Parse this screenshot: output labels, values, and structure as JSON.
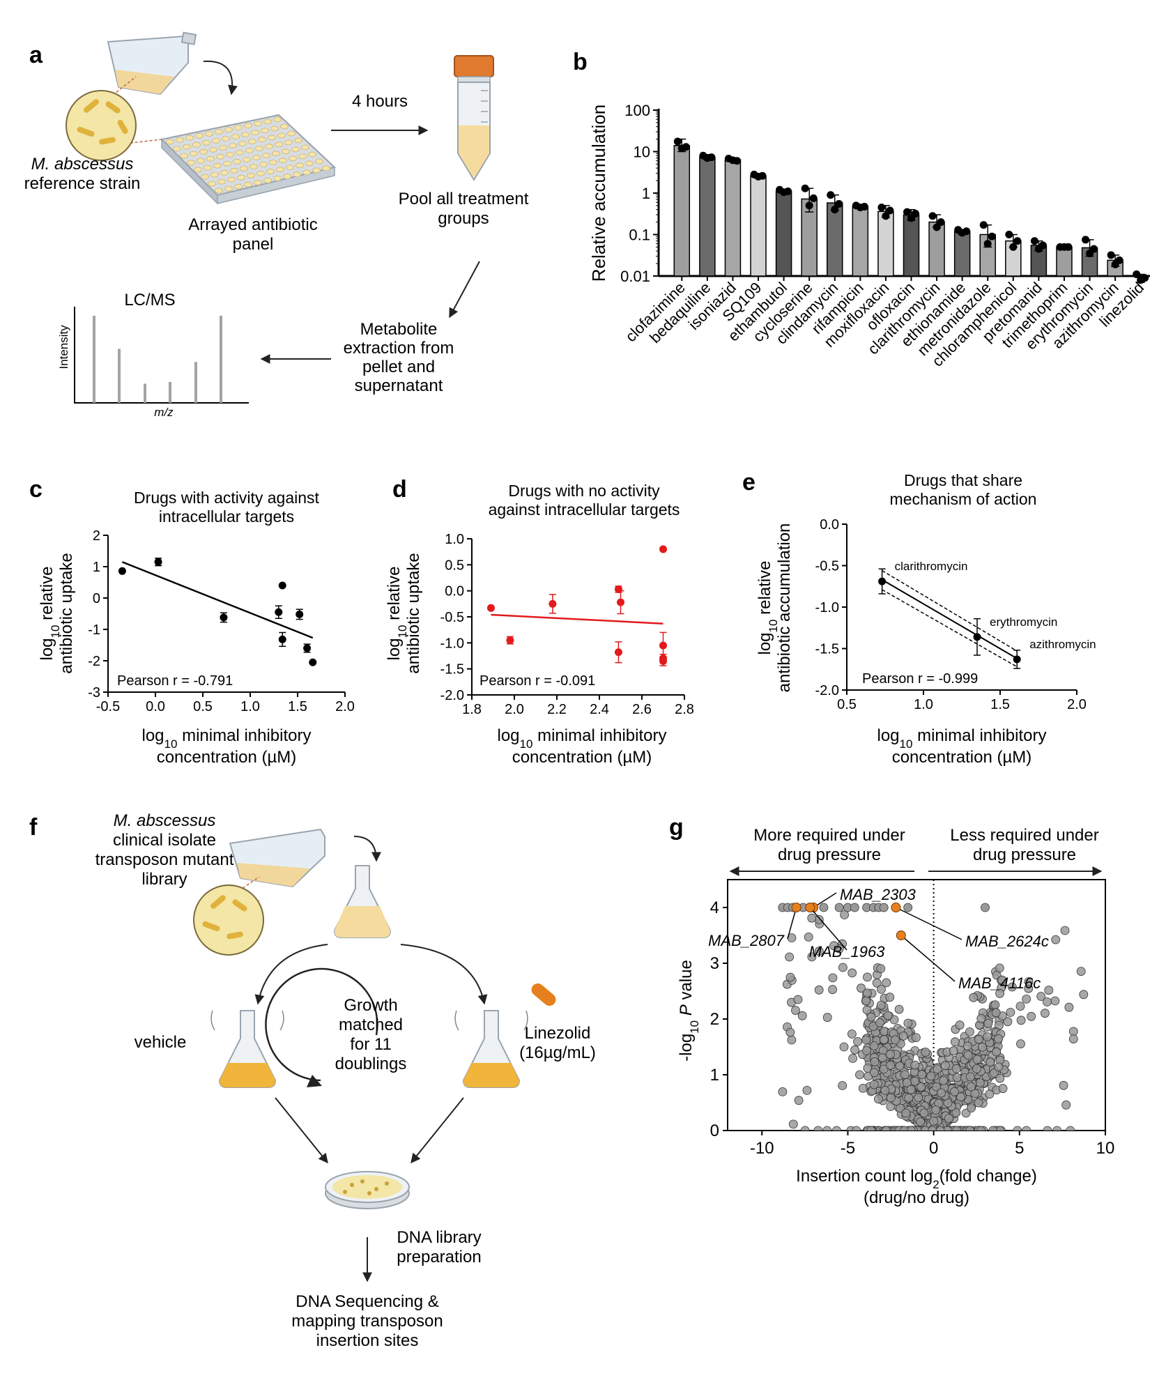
{
  "panels": {
    "a": {
      "letter": "a",
      "strain_italic": "M. abscessus",
      "strain_rest": "reference strain",
      "plate_label_1": "Arrayed antibiotic",
      "plate_label_2": "panel",
      "time_label": "4 hours",
      "pool_1": "Pool all treatment",
      "pool_2": "groups",
      "extract_1": "Metabolite",
      "extract_2": "extraction from",
      "extract_3": "pellet and",
      "extract_4": "supernatant",
      "lcms_title": "LC/MS",
      "lcms_ylabel": "Intensity",
      "lcms_xlabel": "m/z",
      "lcms_peaks": [
        1.0,
        0.62,
        0.22,
        0.24,
        0.47,
        1.0
      ]
    },
    "b": {
      "letter": "b"
    },
    "c": {
      "letter": "c",
      "title_1": "Drugs with activity against",
      "title_2": "intracellular targets",
      "pearson": "Pearson r = -0.791"
    },
    "d": {
      "letter": "d",
      "title_1": "Drugs with no activity",
      "title_2": "against intracellular targets",
      "pearson": "Pearson r = -0.091"
    },
    "e": {
      "letter": "e",
      "title_1": "Drugs that share",
      "title_2": "mechanism of action",
      "pearson": "Pearson r = -0.999"
    },
    "f": {
      "letter": "f",
      "lib_italic": "M. abscessus",
      "lib_2": "clinical isolate",
      "lib_3": "transposon mutant",
      "lib_4": "library",
      "vehicle": "vehicle",
      "growth_1": "Growth",
      "growth_2": "matched",
      "growth_3": "for 11",
      "growth_4": "doublings",
      "drug_1": "Linezolid",
      "drug_2": "(16µg/mL)",
      "dna_1": "DNA library",
      "dna_2": "preparation",
      "seq_1": "DNA Sequencing &",
      "seq_2": "mapping transposon",
      "seq_3": "insertion sites"
    },
    "g": {
      "letter": "g",
      "left_header_1": "More required under",
      "left_header_2": "drug pressure",
      "right_header_1": "Less required under",
      "right_header_2": "drug pressure"
    }
  },
  "colors": {
    "red": "#e3191c",
    "orange": "#e6801e",
    "grey_point": "#999999",
    "bar_colors": [
      "#9e9e9e",
      "#6b6b6b",
      "#a6a6a6",
      "#d3d3d3",
      "#555555"
    ]
  },
  "chart_data": [
    {
      "panel": "b",
      "type": "bar",
      "ylabel": "Relative accumulation",
      "yscale": "log",
      "ylim": [
        0.01,
        100
      ],
      "yticks": [
        "0.01",
        "0.1",
        "1",
        "10",
        "100"
      ],
      "categories": [
        "clofazimine",
        "bedaquiline",
        "isoniazid",
        "SQ109",
        "ethambutol",
        "cycloserine",
        "clindamycin",
        "rifampicin",
        "moxifloxacin",
        "ofloxacin",
        "clarithromycin",
        "ethionamide",
        "metronidazole",
        "chloramphenicol",
        "pretomanid",
        "trimethoprim",
        "erythromycin",
        "azithromycin",
        "linezolid"
      ],
      "values": [
        14,
        7.4,
        6.3,
        2.6,
        1.1,
        0.72,
        0.58,
        0.47,
        0.36,
        0.3,
        0.2,
        0.12,
        0.1,
        0.07,
        0.055,
        0.05,
        0.048,
        0.024,
        0.009
      ],
      "err_low": [
        10,
        6.5,
        5.8,
        2.3,
        1.0,
        0.35,
        0.38,
        0.43,
        0.26,
        0.22,
        0.15,
        0.1,
        0.05,
        0.05,
        0.04,
        0.048,
        0.03,
        0.017,
        0.007
      ],
      "err_high": [
        20,
        8.5,
        6.8,
        2.9,
        1.2,
        1.3,
        0.9,
        0.52,
        0.5,
        0.4,
        0.3,
        0.13,
        0.17,
        0.1,
        0.07,
        0.052,
        0.075,
        0.032,
        0.011
      ],
      "points": [
        [
          17.5,
          12,
          13
        ],
        [
          8,
          7,
          7.3
        ],
        [
          6.8,
          6.2,
          6
        ],
        [
          2.8,
          2.5,
          2.6
        ],
        [
          1.2,
          1.05,
          1.1
        ],
        [
          1.3,
          0.5,
          0.75
        ],
        [
          0.9,
          0.4,
          0.55
        ],
        [
          0.5,
          0.45,
          0.47
        ],
        [
          0.45,
          0.28,
          0.38
        ],
        [
          0.35,
          0.25,
          0.32
        ],
        [
          0.28,
          0.15,
          0.2
        ],
        [
          0.13,
          0.11,
          0.12
        ],
        [
          0.17,
          0.06,
          0.09
        ],
        [
          0.1,
          0.05,
          0.07
        ],
        [
          0.07,
          0.045,
          0.055
        ],
        [
          0.05,
          0.05,
          0.05
        ],
        [
          0.075,
          0.035,
          0.045
        ],
        [
          0.032,
          0.019,
          0.024
        ],
        [
          0.011,
          0.008,
          0.009
        ]
      ]
    },
    {
      "panel": "c",
      "type": "scatter",
      "xlabel_1": "log",
      "xlabel_1_sub": "10",
      "xlabel_1_rest": " minimal inhibitory",
      "xlabel_2": "concentration (µM)",
      "ylabel_1": "log",
      "ylabel_1_sub": "10",
      "ylabel_1_rest": " relative",
      "ylabel_2": "antibiotic uptake",
      "xlim": [
        -0.5,
        2.0
      ],
      "ylim": [
        -3,
        2
      ],
      "xticks": [
        "-0.5",
        "0.0",
        "0.5",
        "1.0",
        "1.5",
        "2.0"
      ],
      "yticks": [
        "-3",
        "-2",
        "-1",
        "0",
        "1",
        "2"
      ],
      "points": [
        [
          -0.35,
          0.86,
          0
        ],
        [
          0.03,
          1.15,
          0.12
        ],
        [
          0.72,
          -0.62,
          0.15
        ],
        [
          1.3,
          -0.45,
          0.2
        ],
        [
          1.34,
          0.4,
          0
        ],
        [
          1.34,
          -1.32,
          0.22
        ],
        [
          1.52,
          -0.52,
          0.16
        ],
        [
          1.6,
          -1.6,
          0.13
        ],
        [
          1.66,
          -2.05,
          0
        ]
      ],
      "fit": [
        [
          -0.35,
          1.15
        ],
        [
          1.66,
          -1.27
        ]
      ]
    },
    {
      "panel": "d",
      "type": "scatter",
      "xlabel_1": "log",
      "xlabel_1_sub": "10",
      "xlabel_1_rest": " minimal inhibitory",
      "xlabel_2": "concentration (µM)",
      "ylabel_1": "log",
      "ylabel_1_sub": "10",
      "ylabel_1_rest": " relative",
      "ylabel_2": "antibiotic uptake",
      "xlim": [
        1.8,
        2.8
      ],
      "ylim": [
        -2.0,
        1.0
      ],
      "xticks": [
        "1.8",
        "2.0",
        "2.2",
        "2.4",
        "2.6",
        "2.8"
      ],
      "yticks": [
        "-2.0",
        "-1.5",
        "-1.0",
        "-0.5",
        "0.0",
        "0.5",
        "1.0"
      ],
      "points": [
        [
          1.89,
          -0.33,
          0
        ],
        [
          1.98,
          -0.95,
          0.07
        ],
        [
          2.18,
          -0.25,
          0.18
        ],
        [
          2.49,
          0.03,
          0.06
        ],
        [
          2.5,
          -0.22,
          0.22
        ],
        [
          2.49,
          -1.18,
          0.2
        ],
        [
          2.7,
          0.8,
          0
        ],
        [
          2.7,
          -1.05,
          0.25
        ],
        [
          2.7,
          -1.3,
          0.08
        ],
        [
          2.7,
          -1.35,
          0.09
        ]
      ],
      "fit": [
        [
          1.89,
          -0.46
        ],
        [
          2.7,
          -0.63
        ]
      ]
    },
    {
      "panel": "e",
      "type": "scatter",
      "xlabel_1": "log",
      "xlabel_1_sub": "10",
      "xlabel_1_rest": " minimal inhibitory",
      "xlabel_2": "concentration (µM)",
      "ylabel_1": "log",
      "ylabel_1_sub": "10",
      "ylabel_1_rest": " relative",
      "ylabel_2": "antibiotic accumulation",
      "xlim": [
        0.5,
        2.0
      ],
      "ylim": [
        -2.0,
        0.0
      ],
      "xticks": [
        "0.5",
        "1.0",
        "1.5",
        "2.0"
      ],
      "yticks": [
        "-2.0",
        "-1.5",
        "-1.0",
        "-0.5",
        "0.0"
      ],
      "points": [
        [
          0.73,
          -0.69,
          0.15,
          "clarithromycin"
        ],
        [
          1.35,
          -1.36,
          0.22,
          "erythromycin"
        ],
        [
          1.61,
          -1.63,
          0.11,
          "azithromycin"
        ]
      ],
      "fit": [
        [
          0.73,
          -0.67
        ],
        [
          1.61,
          -1.62
        ]
      ],
      "ci_upper": [
        [
          0.73,
          -0.56
        ],
        [
          1.61,
          -1.53
        ]
      ],
      "ci_lower": [
        [
          0.73,
          -0.79
        ],
        [
          1.61,
          -1.72
        ]
      ]
    },
    {
      "panel": "g",
      "type": "scatter",
      "xlabel_1": "Insertion count log",
      "xlabel_1_sub": "2",
      "xlabel_1_rest": "(fold change)",
      "xlabel_2": "(drug/no drug)",
      "ylabel_1": "-log",
      "ylabel_1_sub": "10",
      "ylabel_1_ital": " P",
      "ylabel_1_rest": " value",
      "xlim": [
        -12,
        10
      ],
      "ylim": [
        0,
        4.5
      ],
      "xticks": [
        "-10",
        "-5",
        "0",
        "5",
        "10"
      ],
      "yticks": [
        "0",
        "1",
        "2",
        "3",
        "4"
      ],
      "highlighted": [
        {
          "name": "MAB_2303",
          "x": -7.0,
          "y": 4.0
        },
        {
          "name": "MAB_2807",
          "x": -8.0,
          "y": 4.0
        },
        {
          "name": "MAB_1963",
          "x": -7.2,
          "y": 4.0
        },
        {
          "name": "MAB_2624c",
          "x": -2.2,
          "y": 4.0
        },
        {
          "name": "MAB_4116c",
          "x": -1.9,
          "y": 3.5
        }
      ]
    }
  ]
}
